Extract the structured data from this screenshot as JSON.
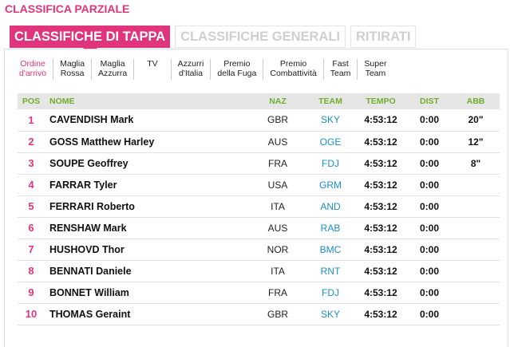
{
  "header": {
    "title": "CLASSIFICA PARZIALE"
  },
  "main_tabs": [
    {
      "label": "CLASSIFICHE DI TAPPA",
      "active": true
    },
    {
      "label": "CLASSIFICHE GENERALI",
      "active": false
    },
    {
      "label": "RITIRATI",
      "active": false
    }
  ],
  "sub_tabs": [
    {
      "line1": "Ordine",
      "line2": "d'arrivo",
      "active": true
    },
    {
      "line1": "Maglia",
      "line2": "Rossa",
      "active": false
    },
    {
      "line1": "Maglia",
      "line2": "Azzurra",
      "active": false
    },
    {
      "line1": "TV",
      "line2": "",
      "active": false
    },
    {
      "line1": "Azzurri",
      "line2": "d'Italia",
      "active": false
    },
    {
      "line1": "Premio",
      "line2": "della Fuga",
      "active": false
    },
    {
      "line1": "Premio",
      "line2": "Combattività",
      "active": false
    },
    {
      "line1": "Fast",
      "line2": "Team",
      "active": false
    },
    {
      "line1": "Super",
      "line2": "Team",
      "active": false
    }
  ],
  "table": {
    "headers": {
      "pos": "POS",
      "name": "NOME",
      "naz": "NAZ",
      "team": "TEAM",
      "tempo": "TEMPO",
      "dist": "DIST",
      "abb": "ABB"
    },
    "rows": [
      {
        "pos": "1",
        "name": "CAVENDISH Mark",
        "naz": "GBR",
        "team": "SKY",
        "tempo": "4:53:12",
        "dist": "0:00",
        "abb": "20\""
      },
      {
        "pos": "2",
        "name": "GOSS Matthew Harley",
        "naz": "AUS",
        "team": "OGE",
        "tempo": "4:53:12",
        "dist": "0:00",
        "abb": "12\""
      },
      {
        "pos": "3",
        "name": "SOUPE Geoffrey",
        "naz": "FRA",
        "team": "FDJ",
        "tempo": "4:53:12",
        "dist": "0:00",
        "abb": "8\""
      },
      {
        "pos": "4",
        "name": "FARRAR Tyler",
        "naz": "USA",
        "team": "GRM",
        "tempo": "4:53:12",
        "dist": "0:00",
        "abb": ""
      },
      {
        "pos": "5",
        "name": "FERRARI Roberto",
        "naz": "ITA",
        "team": "AND",
        "tempo": "4:53:12",
        "dist": "0:00",
        "abb": ""
      },
      {
        "pos": "6",
        "name": "RENSHAW Mark",
        "naz": "AUS",
        "team": "RAB",
        "tempo": "4:53:12",
        "dist": "0:00",
        "abb": ""
      },
      {
        "pos": "7",
        "name": "HUSHOVD Thor",
        "naz": "NOR",
        "team": "BMC",
        "tempo": "4:53:12",
        "dist": "0:00",
        "abb": ""
      },
      {
        "pos": "8",
        "name": "BENNATI Daniele",
        "naz": "ITA",
        "team": "RNT",
        "tempo": "4:53:12",
        "dist": "0:00",
        "abb": ""
      },
      {
        "pos": "9",
        "name": "BONNET William",
        "naz": "FRA",
        "team": "FDJ",
        "tempo": "4:53:12",
        "dist": "0:00",
        "abb": ""
      },
      {
        "pos": "10",
        "name": "THOMAS Geraint",
        "naz": "GBR",
        "team": "SKY",
        "tempo": "4:53:12",
        "dist": "0:00",
        "abb": ""
      }
    ]
  },
  "colors": {
    "accent": "#e0357c",
    "header_text": "#6fae2b",
    "team_link": "#1c8fc9",
    "inactive_tab": "#cfcfcf"
  }
}
